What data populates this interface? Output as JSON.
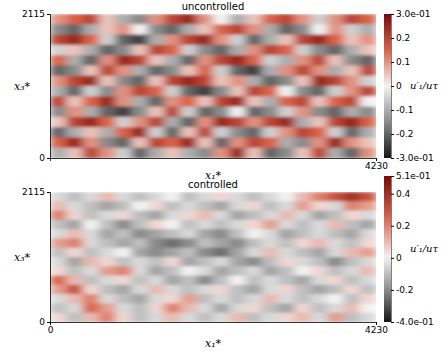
{
  "chart_data": [
    {
      "type": "heatmap",
      "title": "uncontrolled",
      "x_label": "x₁*",
      "y_label": "x₃*",
      "xlim": [
        0,
        4230
      ],
      "ylim": [
        0,
        2115
      ],
      "xticks": [
        4230
      ],
      "yticks": [
        0,
        2115
      ],
      "cells": [
        [
          0.1,
          0.15,
          0.2,
          0.05,
          -0.1,
          -0.15,
          0.1,
          0.2,
          0.25,
          0.1,
          0.0,
          -0.1,
          0.05,
          0.15,
          0.2,
          0.1,
          -0.05,
          0.1,
          0.2,
          0.15
        ],
        [
          -0.15,
          -0.2,
          -0.1,
          0.05,
          0.1,
          0.0,
          -0.15,
          -0.2,
          -0.1,
          0.05,
          0.15,
          0.2,
          0.1,
          -0.1,
          -0.2,
          -0.15,
          0.0,
          0.1,
          -0.05,
          -0.1
        ],
        [
          0.2,
          0.25,
          0.15,
          -0.05,
          -0.2,
          -0.25,
          -0.1,
          0.1,
          0.2,
          0.25,
          0.1,
          -0.05,
          -0.2,
          -0.1,
          0.05,
          0.2,
          0.25,
          0.15,
          0.05,
          0.1
        ],
        [
          -0.05,
          0.05,
          -0.1,
          -0.2,
          -0.15,
          0.05,
          0.2,
          0.15,
          -0.05,
          -0.15,
          -0.2,
          -0.1,
          0.1,
          0.2,
          0.15,
          -0.05,
          -0.15,
          -0.2,
          -0.1,
          0.05
        ],
        [
          0.15,
          -0.1,
          -0.2,
          0.1,
          0.25,
          0.2,
          0.05,
          -0.1,
          -0.2,
          0.1,
          0.2,
          0.25,
          0.15,
          -0.05,
          -0.1,
          0.1,
          0.2,
          0.05,
          -0.15,
          -0.2
        ],
        [
          -0.2,
          -0.15,
          0.05,
          0.2,
          0.1,
          -0.1,
          -0.2,
          -0.15,
          0.05,
          0.15,
          -0.05,
          -0.2,
          -0.25,
          -0.1,
          0.1,
          0.2,
          0.1,
          -0.1,
          0.05,
          0.2
        ],
        [
          0.1,
          0.2,
          0.25,
          0.05,
          -0.15,
          -0.2,
          0.05,
          0.2,
          0.25,
          0.2,
          0.05,
          0.1,
          -0.1,
          -0.2,
          -0.15,
          0.05,
          0.25,
          0.2,
          0.1,
          -0.05
        ],
        [
          -0.1,
          -0.2,
          -0.05,
          -0.15,
          0.1,
          0.2,
          0.15,
          -0.05,
          -0.2,
          -0.25,
          -0.15,
          0.05,
          0.2,
          0.15,
          0.0,
          -0.15,
          -0.2,
          -0.05,
          0.1,
          0.2
        ],
        [
          0.2,
          0.05,
          0.15,
          0.25,
          0.1,
          -0.1,
          -0.2,
          0.1,
          0.15,
          0.05,
          0.2,
          0.25,
          0.05,
          -0.1,
          0.15,
          0.2,
          0.05,
          0.15,
          0.2,
          0.0
        ],
        [
          -0.15,
          0.1,
          -0.1,
          -0.2,
          -0.25,
          -0.15,
          0.05,
          0.2,
          -0.05,
          -0.2,
          -0.15,
          0.0,
          -0.2,
          -0.15,
          -0.05,
          0.1,
          -0.15,
          -0.2,
          -0.1,
          -0.15
        ],
        [
          0.05,
          0.2,
          0.25,
          0.15,
          -0.05,
          0.1,
          0.2,
          -0.1,
          -0.2,
          0.1,
          0.25,
          0.2,
          0.1,
          0.2,
          0.25,
          -0.1,
          0.05,
          0.2,
          0.25,
          0.15
        ],
        [
          -0.2,
          -0.1,
          0.05,
          -0.1,
          0.15,
          0.25,
          -0.05,
          -0.2,
          0.05,
          0.2,
          -0.05,
          -0.15,
          -0.2,
          -0.05,
          0.1,
          0.2,
          0.15,
          -0.05,
          -0.2,
          -0.1
        ],
        [
          0.15,
          0.25,
          0.1,
          -0.15,
          -0.2,
          0.05,
          0.2,
          0.15,
          0.25,
          0.05,
          -0.2,
          0.1,
          0.2,
          0.15,
          -0.1,
          -0.15,
          0.1,
          0.25,
          0.1,
          0.05
        ],
        [
          -0.1,
          0.05,
          0.2,
          0.1,
          -0.05,
          -0.2,
          -0.1,
          0.05,
          -0.1,
          -0.15,
          0.1,
          0.25,
          0.05,
          -0.2,
          -0.15,
          0.05,
          0.2,
          -0.1,
          -0.2,
          0.1
        ]
      ],
      "colorbar": {
        "label": "u′₁/uτ",
        "range": [
          -0.3,
          0.3
        ],
        "ticks": [
          {
            "value": 0.3,
            "label": "3.0e-01"
          },
          0.2,
          0.1,
          0,
          -0.1,
          -0.2,
          {
            "value": -0.3,
            "label": "-3.0e-01"
          }
        ]
      }
    },
    {
      "type": "heatmap",
      "title": "controlled",
      "x_label": "x₁*",
      "y_label": "x₃*",
      "xlim": [
        0,
        4230
      ],
      "ylim": [
        0,
        2115
      ],
      "xticks": [
        0,
        4230
      ],
      "yticks": [
        0,
        2115
      ],
      "cells": [
        [
          -0.05,
          -0.1,
          -0.05,
          0.1,
          -0.05,
          -0.1,
          -0.05,
          0.0,
          -0.1,
          -0.05,
          0.05,
          -0.05,
          -0.1,
          -0.05,
          0.0,
          0.1,
          0.2,
          0.3,
          0.4,
          0.3
        ],
        [
          0.1,
          -0.05,
          -0.1,
          -0.15,
          -0.1,
          0.0,
          0.05,
          -0.1,
          -0.05,
          -0.1,
          -0.15,
          -0.05,
          0.05,
          -0.1,
          -0.05,
          0.15,
          0.05,
          -0.05,
          0.2,
          0.15
        ],
        [
          0.2,
          0.05,
          -0.1,
          -0.05,
          0.05,
          -0.1,
          -0.15,
          -0.05,
          0.05,
          0.1,
          -0.05,
          -0.15,
          -0.1,
          -0.05,
          0.1,
          -0.05,
          -0.15,
          -0.1,
          0.05,
          -0.05
        ],
        [
          -0.1,
          -0.15,
          0.0,
          -0.1,
          -0.2,
          -0.1,
          0.05,
          0.0,
          -0.1,
          -0.05,
          -0.1,
          -0.05,
          0.05,
          0.15,
          -0.05,
          -0.1,
          -0.05,
          0.1,
          -0.1,
          -0.15
        ],
        [
          -0.05,
          0.1,
          -0.05,
          -0.15,
          -0.1,
          -0.2,
          -0.15,
          -0.1,
          -0.05,
          -0.15,
          -0.2,
          -0.1,
          0.0,
          -0.05,
          -0.15,
          -0.1,
          -0.05,
          -0.1,
          -0.15,
          -0.05
        ],
        [
          0.15,
          0.2,
          -0.05,
          -0.1,
          -0.15,
          -0.1,
          -0.2,
          -0.25,
          -0.2,
          -0.1,
          -0.15,
          -0.2,
          -0.1,
          -0.05,
          -0.1,
          0.05,
          0.1,
          -0.05,
          -0.1,
          0.05
        ],
        [
          -0.1,
          0.05,
          -0.1,
          -0.05,
          0.0,
          -0.15,
          -0.2,
          -0.15,
          -0.1,
          -0.2,
          -0.25,
          -0.15,
          -0.05,
          0.1,
          -0.05,
          -0.1,
          -0.15,
          -0.05,
          0.1,
          0.15
        ],
        [
          -0.05,
          -0.15,
          0.1,
          0.05,
          -0.1,
          -0.05,
          -0.1,
          0.05,
          -0.15,
          -0.1,
          -0.05,
          -0.15,
          -0.2,
          -0.1,
          0.05,
          -0.05,
          -0.1,
          -0.2,
          -0.1,
          -0.05
        ],
        [
          0.05,
          -0.1,
          -0.05,
          0.15,
          0.2,
          -0.05,
          -0.15,
          -0.1,
          0.0,
          -0.05,
          -0.15,
          -0.1,
          -0.05,
          -0.15,
          -0.1,
          0.0,
          0.05,
          -0.1,
          -0.05,
          0.1
        ],
        [
          0.25,
          0.1,
          -0.1,
          -0.05,
          0.05,
          -0.1,
          -0.05,
          -0.15,
          -0.1,
          -0.2,
          -0.1,
          0.0,
          -0.1,
          -0.05,
          -0.1,
          -0.15,
          -0.05,
          0.05,
          -0.1,
          -0.05
        ],
        [
          0.15,
          0.3,
          0.05,
          -0.1,
          -0.15,
          -0.05,
          0.1,
          -0.05,
          -0.1,
          -0.05,
          0.05,
          -0.1,
          -0.15,
          -0.05,
          0.05,
          -0.1,
          -0.15,
          -0.1,
          0.05,
          -0.1
        ],
        [
          -0.05,
          0.1,
          0.2,
          -0.05,
          -0.1,
          -0.15,
          -0.05,
          0.05,
          0.15,
          -0.1,
          -0.05,
          -0.1,
          -0.05,
          0.1,
          -0.05,
          -0.1,
          -0.05,
          0.0,
          -0.1,
          0.05
        ],
        [
          -0.1,
          -0.05,
          0.25,
          0.15,
          -0.05,
          -0.1,
          0.05,
          0.2,
          0.1,
          -0.05,
          -0.15,
          -0.05,
          0.05,
          -0.1,
          -0.15,
          0.05,
          -0.1,
          -0.05,
          0.1,
          0.0
        ],
        [
          0.05,
          -0.1,
          0.1,
          0.2,
          0.05,
          -0.1,
          -0.05,
          0.1,
          -0.05,
          -0.1,
          -0.05,
          0.1,
          -0.1,
          -0.05,
          0.05,
          0.1,
          -0.05,
          0.15,
          -0.1,
          -0.05
        ]
      ],
      "colorbar": {
        "label": "u′₁/uτ",
        "range": [
          -0.4,
          0.51
        ],
        "ticks": [
          {
            "value": 0.51,
            "label": "5.1e-01"
          },
          0.4,
          0.2,
          0,
          -0.2,
          {
            "value": -0.4,
            "label": "-4.0e-01"
          }
        ]
      }
    }
  ]
}
